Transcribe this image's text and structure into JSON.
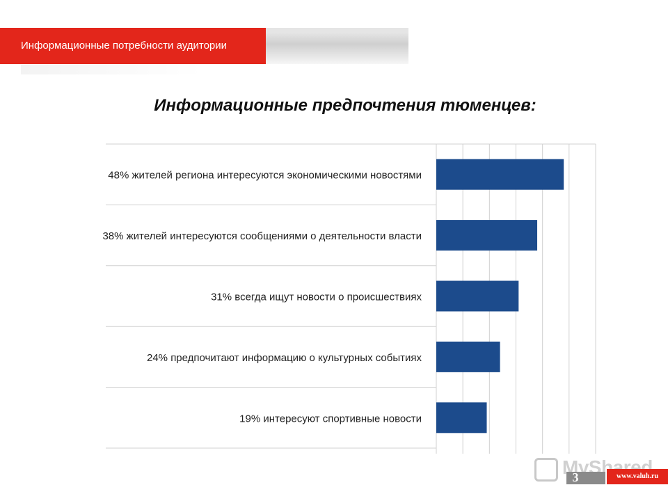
{
  "header": {
    "title": "Информационные потребности аудитории"
  },
  "slide": {
    "title": "Информационные предпочтения тюменцев:",
    "page_number": "3",
    "site_url": "www.valuh.ru"
  },
  "watermark": {
    "text": "MyShared"
  },
  "colors": {
    "accent": "#e3261b",
    "bar": "#1c4b8c",
    "grid": "#d0d0d0"
  },
  "chart_data": {
    "type": "bar",
    "orientation": "horizontal",
    "categories": [
      "48% жителей региона интересуются экономическими новостями",
      "38% жителей интересуются сообщениями о деятельности власти",
      "31% всегда ищут новости о происшествиях",
      "24% предпочитают информацию о культурных событиях",
      "19% интересуют спортивные новости"
    ],
    "values": [
      48,
      38,
      31,
      24,
      19
    ],
    "xlim": [
      0,
      60
    ],
    "grid": true,
    "legend": "none"
  }
}
